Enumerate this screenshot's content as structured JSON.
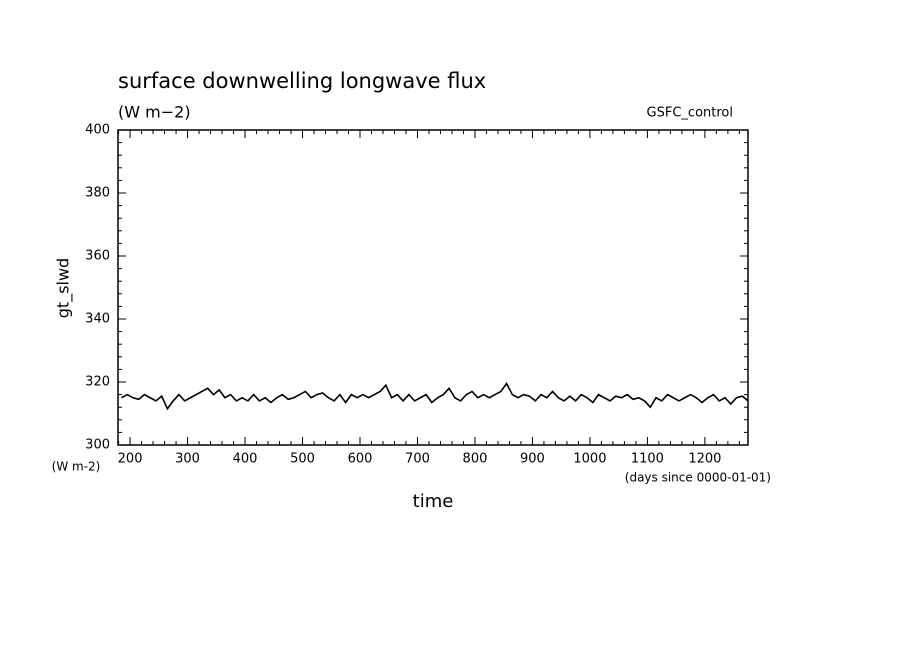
{
  "chart_data": {
    "type": "line",
    "title": "surface downwelling longwave flux",
    "subtitle": "(W m−2)",
    "annotation": "GSFC_control",
    "ylabel": "gt_slwd",
    "y_unit": "(W m-2)",
    "xlabel": "time",
    "x_unit": "(days since 0000-01-01)",
    "color": "#000000",
    "x": [
      185,
      195,
      205,
      215,
      225,
      235,
      245,
      255,
      265,
      275,
      285,
      295,
      305,
      315,
      325,
      335,
      345,
      355,
      365,
      375,
      385,
      395,
      405,
      415,
      425,
      435,
      445,
      455,
      465,
      475,
      485,
      495,
      505,
      515,
      525,
      535,
      545,
      555,
      565,
      575,
      585,
      595,
      605,
      615,
      625,
      635,
      645,
      655,
      665,
      675,
      685,
      695,
      705,
      715,
      725,
      735,
      745,
      755,
      765,
      775,
      785,
      795,
      805,
      815,
      825,
      835,
      845,
      855,
      865,
      875,
      885,
      895,
      905,
      915,
      925,
      935,
      945,
      955,
      965,
      975,
      985,
      995,
      1005,
      1015,
      1025,
      1035,
      1045,
      1055,
      1065,
      1075,
      1085,
      1095,
      1105,
      1115,
      1125,
      1135,
      1145,
      1155,
      1165,
      1175,
      1185,
      1195,
      1205,
      1215,
      1225,
      1235,
      1245,
      1255,
      1265,
      1275
    ],
    "values": [
      315,
      316,
      315,
      314.5,
      316,
      315,
      314,
      315.5,
      311.5,
      314,
      316,
      314,
      315,
      316,
      317,
      318,
      316,
      317.5,
      315,
      316,
      314,
      315,
      314,
      316,
      314,
      315,
      313.5,
      315,
      316,
      314.5,
      315,
      316,
      317,
      315,
      316,
      316.5,
      315,
      314,
      316,
      313.5,
      316,
      315,
      316,
      315,
      316,
      317,
      319,
      315,
      316,
      314,
      316,
      314,
      315,
      316,
      313.5,
      315,
      316,
      318,
      315,
      314,
      316,
      317,
      315,
      316,
      315,
      316,
      317,
      319.5,
      316,
      315,
      316,
      315.5,
      314,
      316,
      315,
      317,
      315,
      314,
      315.5,
      314,
      316,
      315,
      313.5,
      316,
      315,
      314,
      315.5,
      315,
      316,
      314.5,
      315,
      314,
      312,
      315,
      314,
      316,
      315,
      314,
      315,
      316,
      315,
      313.5,
      315,
      316,
      314,
      315,
      313,
      315,
      315.5,
      314
    ],
    "xlim": [
      179,
      1275
    ],
    "ylim": [
      300,
      400
    ],
    "xticks": [
      200,
      300,
      400,
      500,
      600,
      700,
      800,
      900,
      1000,
      1100,
      1200
    ],
    "yticks": [
      300,
      320,
      340,
      360,
      380,
      400
    ]
  }
}
